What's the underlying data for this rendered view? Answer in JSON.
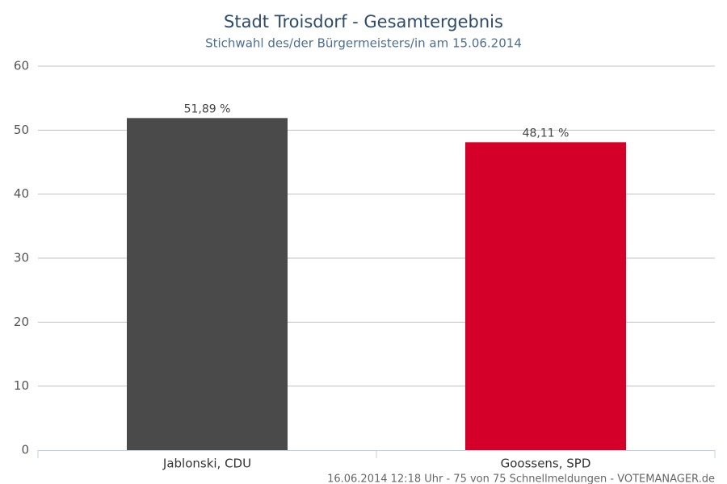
{
  "chart_data": {
    "type": "bar",
    "title": "Stadt Troisdorf - Gesamtergebnis",
    "subtitle": "Stichwahl des/der Bürgermeisters/in am 15.06.2014",
    "categories": [
      "Jablonski, CDU",
      "Goossens, SPD"
    ],
    "values": [
      51.89,
      48.11
    ],
    "value_labels": [
      "51,89 %",
      "48,11 %"
    ],
    "colors": [
      "#4a4a4a",
      "#d50029"
    ],
    "ylim": [
      0,
      60
    ],
    "yticks": [
      0,
      10,
      20,
      30,
      40,
      50,
      60
    ],
    "grid": true,
    "credit": "16.06.2014 12:18 Uhr - 75 von 75 Schnellmeldungen - VOTEMANAGER.de"
  }
}
